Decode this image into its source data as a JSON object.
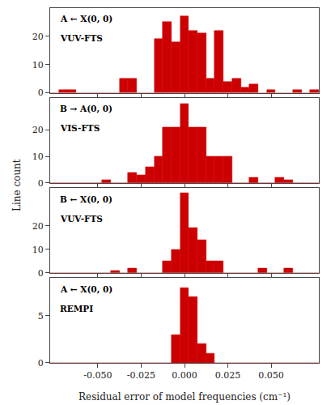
{
  "chart_data": [
    {
      "type": "bar",
      "x": [
        -0.075,
        -0.07,
        -0.065,
        -0.06,
        -0.055,
        -0.05,
        -0.045,
        -0.04,
        -0.035,
        -0.03,
        -0.025,
        -0.02,
        -0.015,
        -0.01,
        -0.005,
        0.0,
        0.005,
        0.01,
        0.015,
        0.02,
        0.025,
        0.03,
        0.035,
        0.04,
        0.045,
        0.05,
        0.055,
        0.06,
        0.065,
        0.07,
        0.075
      ],
      "values": [
        0,
        1,
        1,
        0,
        0,
        0,
        0,
        0,
        5,
        5,
        0,
        0,
        19,
        25,
        18,
        27,
        22,
        21,
        5,
        22,
        4,
        5,
        2,
        3,
        0,
        1,
        0,
        0,
        1,
        0,
        1
      ],
      "color": "#cc0000",
      "annotations": [
        "A ← X(0, 0)",
        "VUV-FTS"
      ],
      "xlim": [
        -0.0775,
        0.0775
      ],
      "xticks": [
        {
          "value": -0.05,
          "label": "-0.050"
        },
        {
          "value": -0.025,
          "label": "-0.025"
        },
        {
          "value": 0,
          "label": "0.000"
        },
        {
          "value": 0.025,
          "label": "0.025"
        },
        {
          "value": 0.05,
          "label": "0.050"
        }
      ],
      "ylim": [
        0,
        30
      ],
      "yticks": [
        0,
        10,
        20
      ],
      "tick_labels": "y",
      "grid": false
    },
    {
      "type": "bar",
      "x": [
        -0.075,
        -0.07,
        -0.065,
        -0.06,
        -0.055,
        -0.05,
        -0.045,
        -0.04,
        -0.035,
        -0.03,
        -0.025,
        -0.02,
        -0.015,
        -0.01,
        -0.005,
        0.0,
        0.005,
        0.01,
        0.015,
        0.02,
        0.025,
        0.03,
        0.035,
        0.04,
        0.045,
        0.05,
        0.055,
        0.06,
        0.065,
        0.07,
        0.075
      ],
      "values": [
        0,
        0,
        0,
        0,
        0,
        0,
        1,
        0,
        0,
        4,
        3,
        6,
        10,
        21,
        21,
        30,
        21,
        21,
        10,
        10,
        10,
        0,
        0,
        2,
        0,
        0,
        2,
        1,
        0,
        0,
        0
      ],
      "color": "#cc0000",
      "annotations": [
        "B → A(0, 0)",
        "VIS-FTS"
      ],
      "ylabel": "Line count",
      "xlim": [
        -0.0775,
        0.0775
      ],
      "xticks": [
        {
          "value": -0.05,
          "label": "-0.050"
        },
        {
          "value": -0.025,
          "label": "-0.025"
        },
        {
          "value": 0,
          "label": "0.000"
        },
        {
          "value": 0.025,
          "label": "0.025"
        },
        {
          "value": 0.05,
          "label": "0.050"
        }
      ],
      "ylim": [
        0,
        32
      ],
      "yticks": [
        0,
        10,
        20
      ],
      "tick_labels": "y",
      "grid": false
    },
    {
      "type": "bar",
      "x": [
        -0.075,
        -0.07,
        -0.065,
        -0.06,
        -0.055,
        -0.05,
        -0.045,
        -0.04,
        -0.035,
        -0.03,
        -0.025,
        -0.02,
        -0.015,
        -0.01,
        -0.005,
        0.0,
        0.005,
        0.01,
        0.015,
        0.02,
        0.025,
        0.03,
        0.035,
        0.04,
        0.045,
        0.05,
        0.055,
        0.06,
        0.065,
        0.07,
        0.075
      ],
      "values": [
        0,
        0,
        0,
        0,
        0,
        0,
        0,
        1,
        0,
        2,
        0,
        0,
        0,
        5,
        10,
        34,
        19,
        14,
        5,
        5,
        0,
        0,
        0,
        0,
        2,
        0,
        0,
        2,
        0,
        0,
        0
      ],
      "color": "#cc0000",
      "annotations": [
        "B ← X(0, 0)",
        "VUV-FTS"
      ],
      "xlim": [
        -0.0775,
        0.0775
      ],
      "xticks": [
        {
          "value": -0.05,
          "label": "-0.050"
        },
        {
          "value": -0.025,
          "label": "-0.025"
        },
        {
          "value": 0,
          "label": "0.000"
        },
        {
          "value": 0.025,
          "label": "0.025"
        },
        {
          "value": 0.05,
          "label": "0.050"
        }
      ],
      "ylim": [
        0,
        36
      ],
      "yticks": [
        0,
        10,
        20
      ],
      "tick_labels": "y",
      "grid": false
    },
    {
      "type": "bar",
      "x": [
        -0.075,
        -0.07,
        -0.065,
        -0.06,
        -0.055,
        -0.05,
        -0.045,
        -0.04,
        -0.035,
        -0.03,
        -0.025,
        -0.02,
        -0.015,
        -0.01,
        -0.005,
        0.0,
        0.005,
        0.01,
        0.015,
        0.02,
        0.025,
        0.03,
        0.035,
        0.04,
        0.045,
        0.05,
        0.055,
        0.06,
        0.065,
        0.07,
        0.075
      ],
      "values": [
        0,
        0,
        0,
        0,
        0,
        0,
        0,
        0,
        0,
        0,
        0,
        0,
        0,
        0,
        3,
        8,
        7,
        2,
        1,
        0,
        0,
        0,
        0,
        0,
        0,
        0,
        0,
        0,
        0,
        0,
        0
      ],
      "color": "#cc0000",
      "annotations": [
        "A ← X(0, 0)",
        "REMPI"
      ],
      "xlabel": "Residual error of model frequencies (cm⁻¹)",
      "xlim": [
        -0.0775,
        0.0775
      ],
      "xticks": [
        {
          "value": -0.05,
          "label": "-0.050"
        },
        {
          "value": -0.025,
          "label": "-0.025"
        },
        {
          "value": 0,
          "label": "0.000"
        },
        {
          "value": 0.025,
          "label": "0.025"
        },
        {
          "value": 0.05,
          "label": "0.050"
        }
      ],
      "ylim": [
        0,
        9
      ],
      "yticks": [
        0,
        5
      ],
      "grid": false
    }
  ]
}
